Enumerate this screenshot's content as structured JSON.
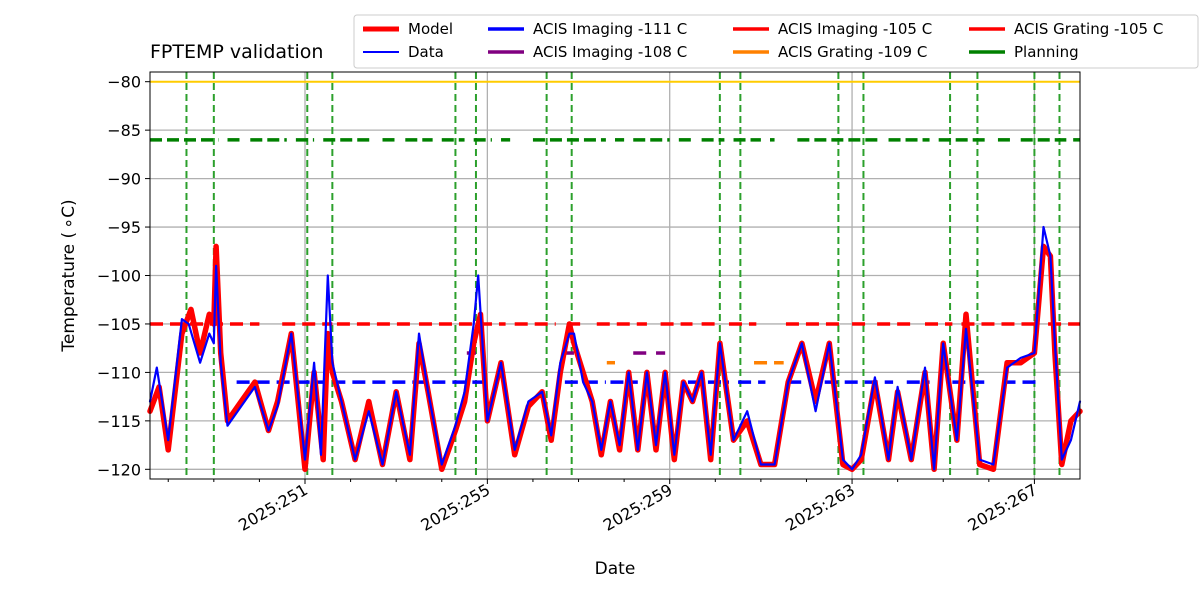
{
  "chart_data": {
    "type": "line",
    "title": "FPTEMP validation",
    "xlabel": "Date",
    "ylabel": "Temperature ($^\\circ$C)",
    "ylabel_display": "Temperature ( ∘C)",
    "x_unit": "day of year 2025",
    "xlim": [
      247.6,
      268.0
    ],
    "ylim": [
      -121.0,
      -79.0
    ],
    "x_ticks": [
      {
        "value": 251,
        "label": "2025:251"
      },
      {
        "value": 255,
        "label": "2025:255"
      },
      {
        "value": 259,
        "label": "2025:259"
      },
      {
        "value": 263,
        "label": "2025:263"
      },
      {
        "value": 267,
        "label": "2025:267"
      }
    ],
    "x_minor_ticks": [
      248,
      249,
      250,
      252,
      253,
      254,
      256,
      257,
      258,
      260,
      261,
      262,
      264,
      265,
      266
    ],
    "y_ticks": [
      {
        "value": -80,
        "label": "−80"
      },
      {
        "value": -85,
        "label": "−85"
      },
      {
        "value": -90,
        "label": "−90"
      },
      {
        "value": -95,
        "label": "−95"
      },
      {
        "value": -100,
        "label": "−100"
      },
      {
        "value": -105,
        "label": "−105"
      },
      {
        "value": -110,
        "label": "−110"
      },
      {
        "value": -115,
        "label": "−115"
      },
      {
        "value": -120,
        "label": "−120"
      }
    ],
    "grid": true,
    "legend_position": "top-right, above the plot",
    "legend": [
      {
        "label": "Model",
        "color": "#ff0000",
        "style": "thick"
      },
      {
        "label": "ACIS Imaging -111 C",
        "color": "#0000ff",
        "style": "solid"
      },
      {
        "label": "ACIS Imaging -105 C",
        "color": "#ff0000",
        "style": "solid"
      },
      {
        "label": "ACIS Grating -105 C",
        "color": "#ff0000",
        "style": "solid"
      },
      {
        "label": "Data",
        "color": "#0000ff",
        "style": "thin"
      },
      {
        "label": "ACIS Imaging -108 C",
        "color": "#800080",
        "style": "solid"
      },
      {
        "label": "ACIS Grating -109 C",
        "color": "#ff8000",
        "style": "solid"
      },
      {
        "label": "Planning",
        "color": "#008000",
        "style": "solid"
      }
    ],
    "reference_line": {
      "y": -80,
      "color": "#ffcc00"
    },
    "event_lines": {
      "color": "#2ca02c",
      "x": [
        248.4,
        249.0,
        251.05,
        251.6,
        254.3,
        254.75,
        256.3,
        256.85,
        260.1,
        260.55,
        262.7,
        263.25,
        265.15,
        265.75,
        267.0,
        267.55
      ]
    },
    "series": [
      {
        "name": "Model",
        "color": "#ff0000",
        "x": [
          247.6,
          247.8,
          248.0,
          248.3,
          248.5,
          248.7,
          248.9,
          249.0,
          249.05,
          249.15,
          249.3,
          249.6,
          249.9,
          250.2,
          250.4,
          250.7,
          251.0,
          251.2,
          251.4,
          251.5,
          251.6,
          251.8,
          252.1,
          252.4,
          252.7,
          253.0,
          253.3,
          253.5,
          253.7,
          254.0,
          254.3,
          254.5,
          254.7,
          254.85,
          255.0,
          255.3,
          255.6,
          255.9,
          256.2,
          256.4,
          256.6,
          256.8,
          256.9,
          257.1,
          257.3,
          257.5,
          257.7,
          257.9,
          258.1,
          258.3,
          258.5,
          258.7,
          258.9,
          259.1,
          259.3,
          259.5,
          259.7,
          259.9,
          260.1,
          260.4,
          260.7,
          261.0,
          261.3,
          261.6,
          261.9,
          262.2,
          262.5,
          262.8,
          263.0,
          263.2,
          263.5,
          263.8,
          264.0,
          264.3,
          264.6,
          264.8,
          265.0,
          265.3,
          265.5,
          265.8,
          266.1,
          266.4,
          266.7,
          267.0,
          267.2,
          267.35,
          267.45,
          267.6,
          267.8,
          268.0
        ],
        "y": [
          -114,
          -111.5,
          -118,
          -106,
          -103.5,
          -108,
          -104,
          -105,
          -97,
          -108,
          -115,
          -113,
          -111,
          -116,
          -113,
          -106,
          -120,
          -110,
          -119,
          -106,
          -110,
          -113,
          -119,
          -113,
          -119.5,
          -112,
          -119,
          -107,
          -112,
          -120,
          -116,
          -113,
          -107,
          -104,
          -115,
          -109,
          -118.5,
          -113.5,
          -112,
          -117,
          -110,
          -105,
          -107,
          -110,
          -113,
          -118.5,
          -113,
          -118,
          -110,
          -118,
          -110,
          -118,
          -110,
          -119,
          -111,
          -113,
          -110,
          -119,
          -107,
          -117,
          -115,
          -119.5,
          -119.5,
          -111,
          -107,
          -113,
          -107,
          -119.5,
          -120,
          -119,
          -111,
          -119,
          -112,
          -119,
          -110,
          -120,
          -107,
          -117,
          -104,
          -119.5,
          -120,
          -109,
          -109,
          -108,
          -97,
          -98,
          -108,
          -119.5,
          -115,
          -114
        ]
      },
      {
        "name": "Data",
        "color": "#0000ff",
        "x": [
          247.6,
          247.75,
          248.0,
          248.3,
          248.45,
          248.7,
          248.9,
          249.0,
          249.05,
          249.15,
          249.3,
          249.6,
          249.9,
          250.2,
          250.4,
          250.7,
          251.0,
          251.2,
          251.35,
          251.5,
          251.6,
          251.8,
          252.1,
          252.4,
          252.7,
          253.0,
          253.3,
          253.5,
          253.7,
          254.0,
          254.3,
          254.5,
          254.7,
          254.8,
          255.0,
          255.3,
          255.6,
          255.9,
          256.2,
          256.4,
          256.6,
          256.8,
          256.9,
          257.1,
          257.3,
          257.5,
          257.7,
          257.9,
          258.1,
          258.3,
          258.5,
          258.7,
          258.9,
          259.1,
          259.3,
          259.5,
          259.7,
          259.9,
          260.1,
          260.4,
          260.7,
          261.0,
          261.3,
          261.6,
          261.9,
          262.2,
          262.5,
          262.8,
          263.0,
          263.2,
          263.5,
          263.8,
          264.0,
          264.3,
          264.6,
          264.8,
          265.0,
          265.3,
          265.5,
          265.8,
          266.1,
          266.4,
          266.7,
          267.0,
          267.2,
          267.35,
          267.45,
          267.6,
          267.8,
          268.0
        ],
        "y": [
          -113,
          -109.5,
          -117,
          -104.5,
          -105,
          -109,
          -106,
          -107,
          -99,
          -109,
          -115.5,
          -113.5,
          -111.5,
          -116,
          -113.5,
          -106,
          -119,
          -109,
          -118.5,
          -100,
          -109,
          -113,
          -119,
          -114,
          -119.5,
          -112,
          -118.5,
          -106,
          -112,
          -119.5,
          -115.5,
          -112,
          -105,
          -100,
          -115,
          -109,
          -118,
          -113,
          -112,
          -116.5,
          -109,
          -106,
          -106,
          -111,
          -113,
          -118,
          -113,
          -117.5,
          -110,
          -118,
          -110,
          -117.5,
          -110,
          -118.5,
          -111,
          -113,
          -110,
          -118.5,
          -107,
          -117,
          -114,
          -119.5,
          -119.5,
          -111,
          -107,
          -114,
          -107,
          -119,
          -120,
          -118.5,
          -110.5,
          -119,
          -111.5,
          -119,
          -109.5,
          -120,
          -107,
          -117,
          -105.5,
          -119,
          -119.5,
          -109.5,
          -108.5,
          -108,
          -95,
          -98,
          -107,
          -119,
          -117,
          -113
        ]
      }
    ],
    "horizontal_segments": [
      {
        "series": "ACIS Imaging -105 C",
        "color": "#ff0000",
        "y": -105,
        "x_ranges": [
          [
            247.6,
            250.0
          ],
          [
            250.5,
            251.6
          ],
          [
            251.7,
            253.4
          ],
          [
            253.5,
            255.4
          ],
          [
            255.6,
            256.5
          ],
          [
            256.75,
            257.1
          ],
          [
            257.4,
            258.5
          ],
          [
            258.8,
            259.5
          ],
          [
            259.7,
            260.0
          ],
          [
            260.3,
            260.9
          ],
          [
            261.55,
            262.8
          ],
          [
            263.0,
            263.3
          ],
          [
            263.55,
            264.4
          ],
          [
            264.6,
            265.2
          ],
          [
            265.4,
            267.1
          ],
          [
            267.3,
            268.0
          ]
        ]
      },
      {
        "series": "ACIS Imaging -111 C",
        "color": "#0000ff",
        "y": -111,
        "x_ranges": [
          [
            249.5,
            251.4
          ],
          [
            251.6,
            255.1
          ],
          [
            256.7,
            257.6
          ],
          [
            257.7,
            258.3
          ],
          [
            259.4,
            260.3
          ],
          [
            260.5,
            261.1
          ],
          [
            261.6,
            262.0
          ],
          [
            262.4,
            263.9
          ],
          [
            264.2,
            264.7
          ],
          [
            265.2,
            265.9
          ],
          [
            266.3,
            267.1
          ]
        ]
      },
      {
        "series": "ACIS Imaging -108 C",
        "color": "#800080",
        "y": -108,
        "x_ranges": [
          [
            254.55,
            254.75
          ],
          [
            256.7,
            256.9
          ],
          [
            258.2,
            258.5
          ],
          [
            258.7,
            258.9
          ]
        ]
      },
      {
        "series": "ACIS Grating -109 C",
        "color": "#ff8000",
        "y": -109,
        "x_ranges": [
          [
            257.62,
            257.8
          ],
          [
            260.85,
            261.5
          ]
        ]
      },
      {
        "series": "Planning",
        "color": "#008000",
        "y": -86,
        "x_ranges": [
          [
            247.6,
            249.1
          ],
          [
            249.3,
            249.6
          ],
          [
            249.8,
            250.6
          ],
          [
            250.8,
            251.2
          ],
          [
            251.4,
            252.5
          ],
          [
            252.7,
            253.0
          ],
          [
            253.2,
            253.8
          ],
          [
            254.0,
            254.5
          ],
          [
            254.7,
            255.1
          ],
          [
            255.3,
            255.5
          ],
          [
            256.0,
            257.6
          ],
          [
            257.8,
            258.0
          ],
          [
            258.2,
            259.0
          ],
          [
            259.2,
            259.5
          ],
          [
            259.7,
            260.2
          ],
          [
            260.4,
            261.0
          ],
          [
            261.2,
            261.3
          ],
          [
            261.8,
            263.6
          ],
          [
            263.8,
            264.7
          ],
          [
            264.9,
            266.0
          ],
          [
            266.2,
            266.5
          ],
          [
            266.7,
            267.7
          ],
          [
            267.85,
            268.0
          ]
        ]
      }
    ]
  }
}
